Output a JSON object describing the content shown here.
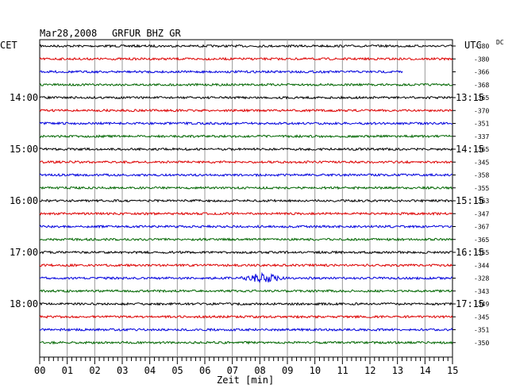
{
  "header": {
    "date": "Mar28,2008",
    "station": "GRFUR BHZ GR",
    "left_zone": "CET",
    "right_zone": "UTC",
    "dc_label": "DC"
  },
  "chart_data": {
    "type": "line",
    "title": "Mar28,2008   GRFUR BHZ GR",
    "xlabel": "Zeit [min]",
    "xlim": [
      0,
      15
    ],
    "x_ticks": [
      "00",
      "01",
      "02",
      "03",
      "04",
      "05",
      "06",
      "07",
      "08",
      "09",
      "10",
      "11",
      "12",
      "13",
      "14",
      "15"
    ],
    "left_time_labels": [
      "14:00",
      "15:00",
      "16:00",
      "17:00",
      "18:00"
    ],
    "right_time_labels": [
      "13:15",
      "14:15",
      "15:15",
      "16:15",
      "17:15"
    ],
    "colors": [
      "#000000",
      "#dd0000",
      "#0000dd",
      "#006600"
    ],
    "traces": [
      {
        "dc": "-380",
        "color": "#000000",
        "end_min": 15
      },
      {
        "dc": "-380",
        "color": "#dd0000",
        "end_min": 15
      },
      {
        "dc": "-366",
        "color": "#0000dd",
        "end_min": 13.2
      },
      {
        "dc": "-368",
        "color": "#006600",
        "end_min": 15
      },
      {
        "dc": "-365",
        "color": "#000000",
        "end_min": 15
      },
      {
        "dc": "-370",
        "color": "#dd0000",
        "end_min": 15
      },
      {
        "dc": "-351",
        "color": "#0000dd",
        "end_min": 15
      },
      {
        "dc": "-337",
        "color": "#006600",
        "end_min": 15
      },
      {
        "dc": "-365",
        "color": "#000000",
        "end_min": 15
      },
      {
        "dc": "-345",
        "color": "#dd0000",
        "end_min": 15
      },
      {
        "dc": "-358",
        "color": "#0000dd",
        "end_min": 15
      },
      {
        "dc": "-355",
        "color": "#006600",
        "end_min": 15
      },
      {
        "dc": "-363",
        "color": "#000000",
        "end_min": 15
      },
      {
        "dc": "-347",
        "color": "#dd0000",
        "end_min": 15
      },
      {
        "dc": "-367",
        "color": "#0000dd",
        "end_min": 15
      },
      {
        "dc": "-365",
        "color": "#006600",
        "end_min": 15
      },
      {
        "dc": "-355",
        "color": "#000000",
        "end_min": 15
      },
      {
        "dc": "-344",
        "color": "#dd0000",
        "end_min": 15
      },
      {
        "dc": "-328",
        "color": "#0000dd",
        "end_min": 15,
        "event_min": 8.1
      },
      {
        "dc": "-343",
        "color": "#006600",
        "end_min": 15
      },
      {
        "dc": "-349",
        "color": "#000000",
        "end_min": 15
      },
      {
        "dc": "-345",
        "color": "#dd0000",
        "end_min": 15
      },
      {
        "dc": "-351",
        "color": "#0000dd",
        "end_min": 15
      },
      {
        "dc": "-350",
        "color": "#006600",
        "end_min": 15
      }
    ]
  }
}
